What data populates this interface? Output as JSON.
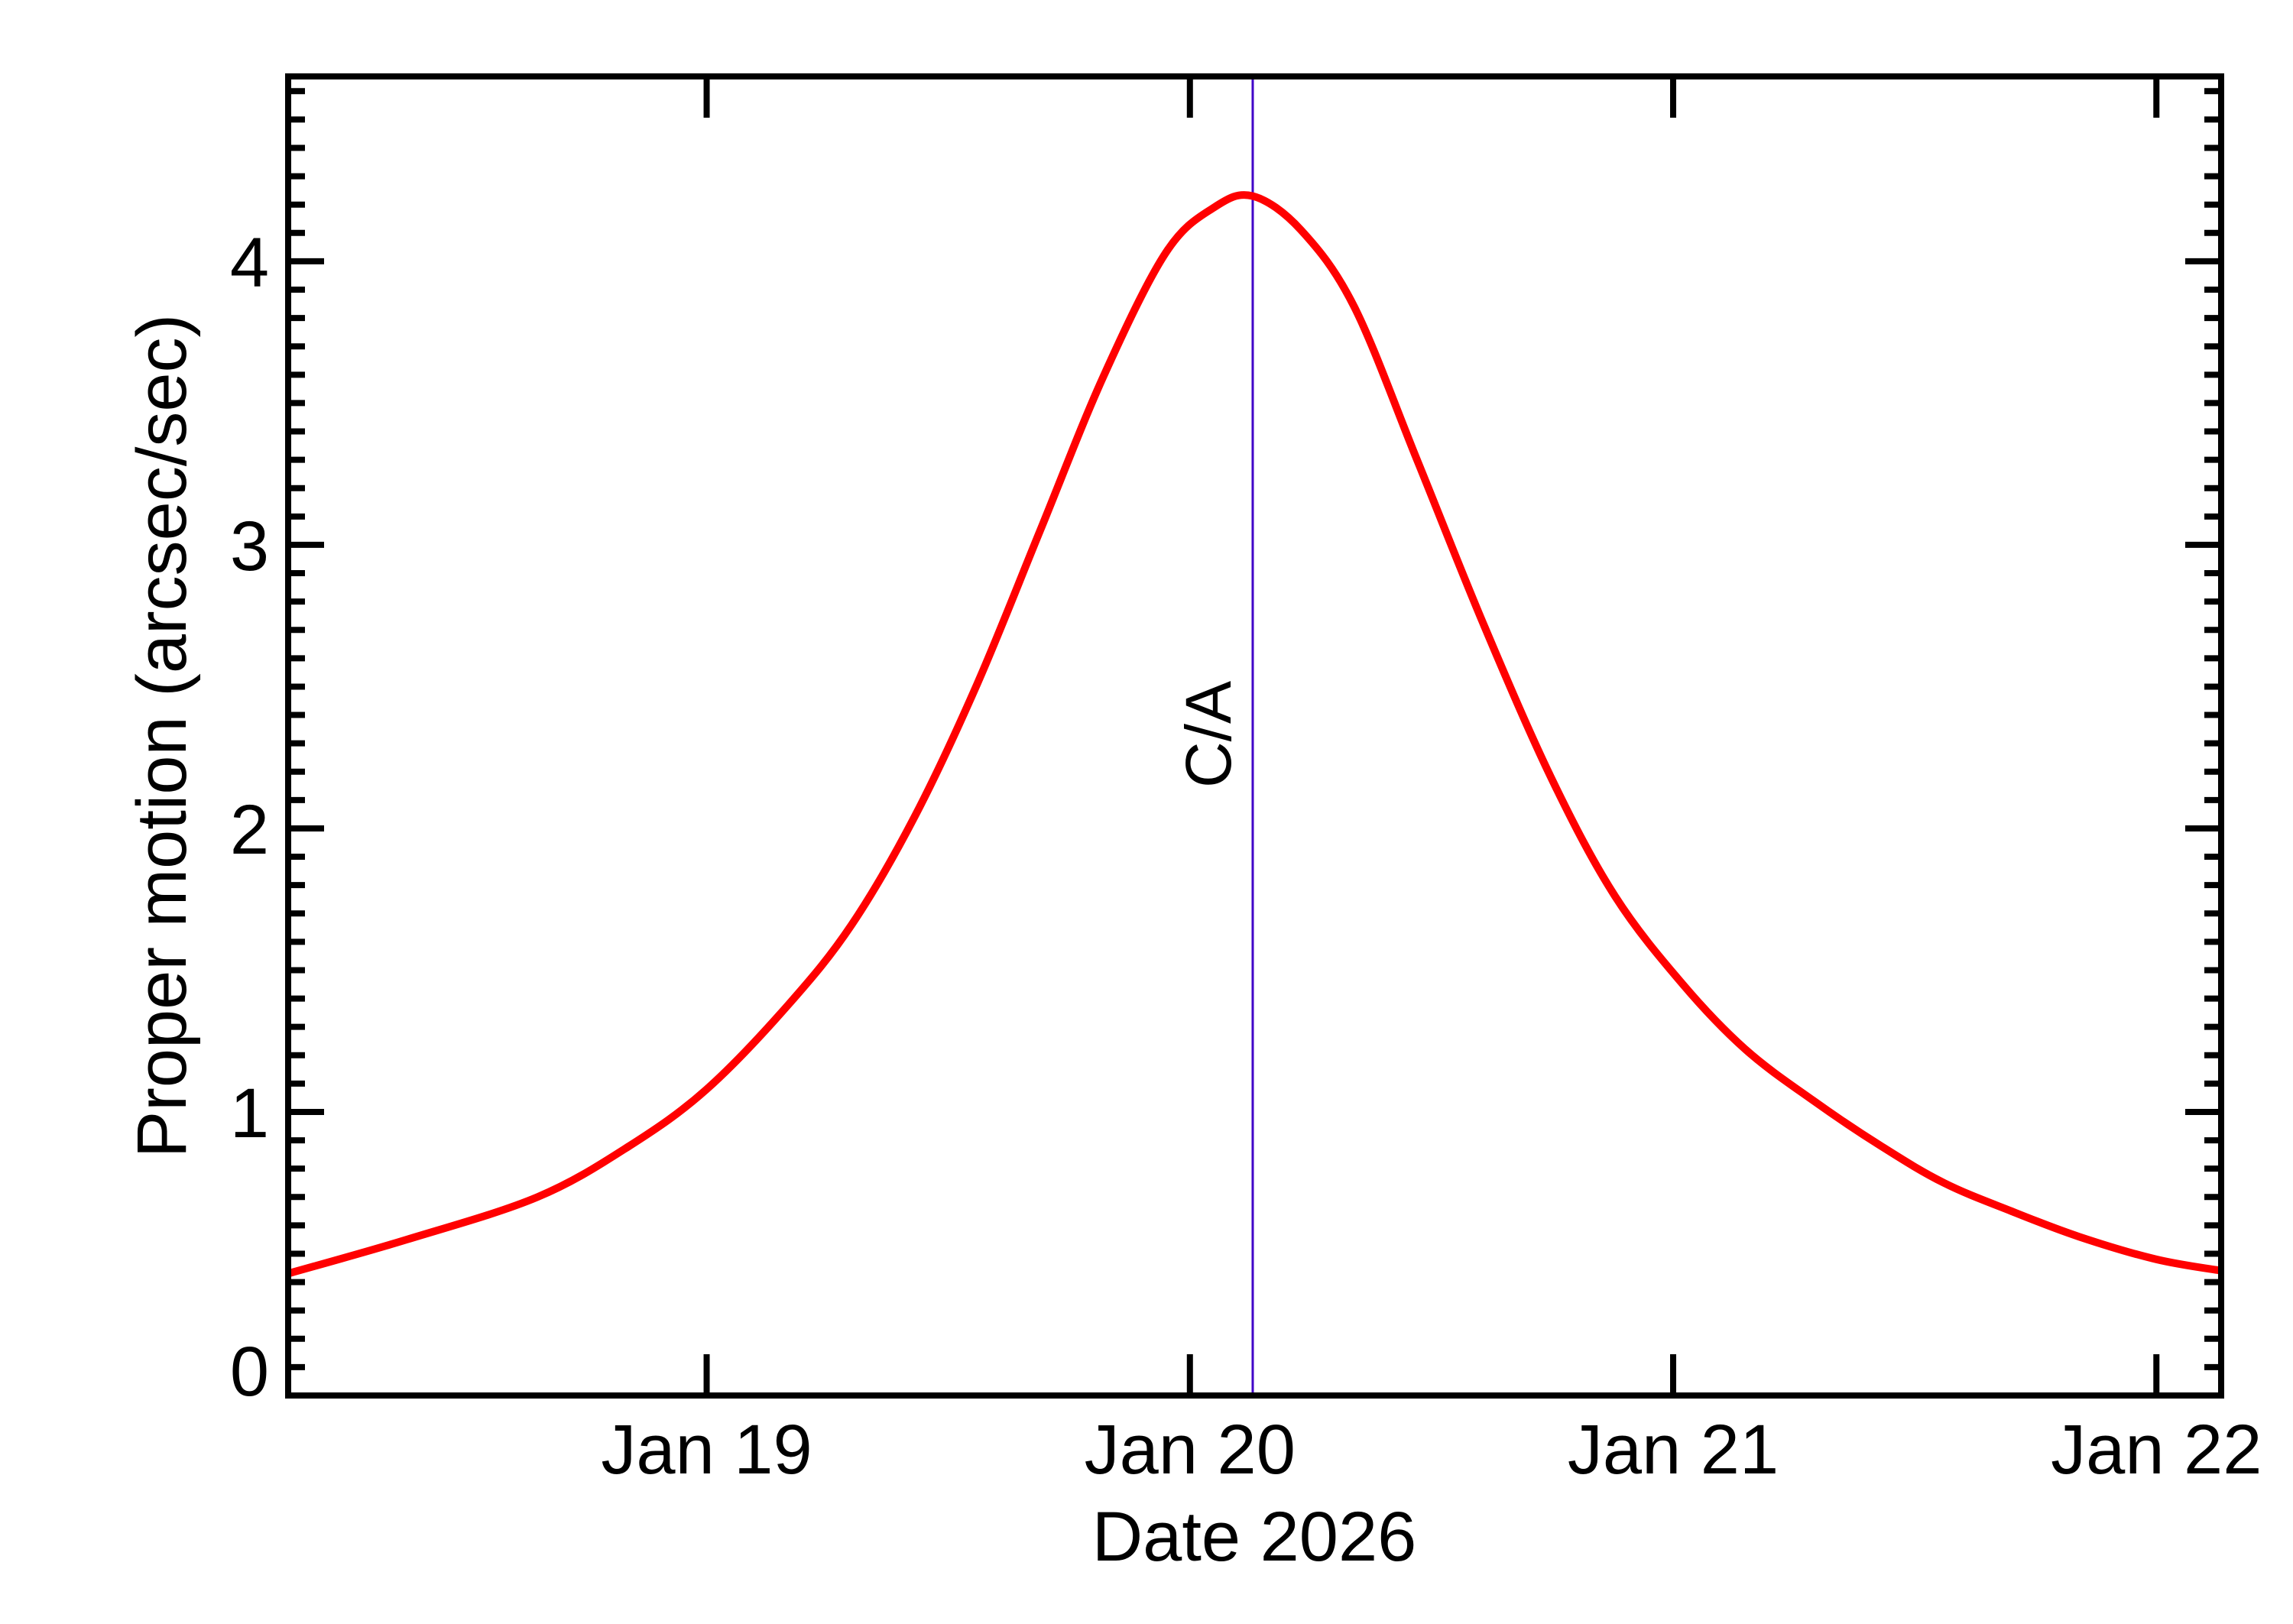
{
  "chart_data": {
    "type": "line",
    "title": "",
    "xlabel": "Date 2026",
    "ylabel": "Proper motion (arcsec/sec)",
    "x_unit": "day of January 2026 (fractional)",
    "xlim": [
      18.134,
      22.134
    ],
    "ylim": [
      0,
      4.652
    ],
    "x_ticks": [
      {
        "value": 19,
        "label": "Jan 19"
      },
      {
        "value": 20,
        "label": "Jan 20"
      },
      {
        "value": 21,
        "label": "Jan 21"
      },
      {
        "value": 22,
        "label": "Jan 22"
      }
    ],
    "y_ticks": [
      {
        "value": 0,
        "label": "0"
      },
      {
        "value": 1,
        "label": "1"
      },
      {
        "value": 2,
        "label": "2"
      },
      {
        "value": 3,
        "label": "3"
      },
      {
        "value": 4,
        "label": "4"
      }
    ],
    "y_minor_step": 0.1,
    "grid": false,
    "legend": null,
    "series": [
      {
        "name": "Proper motion",
        "color": "#ff0000",
        "x": [
          18.134,
          18.38,
          18.65,
          18.84,
          19.0,
          19.17,
          19.3,
          19.43,
          19.56,
          19.69,
          19.82,
          19.95,
          20.05,
          20.13,
          20.23,
          20.34,
          20.47,
          20.61,
          20.75,
          20.88,
          21.02,
          21.15,
          21.29,
          21.43,
          21.56,
          21.7,
          21.84,
          22.0,
          22.134
        ],
        "y": [
          0.43,
          0.55,
          0.7,
          0.88,
          1.08,
          1.38,
          1.66,
          2.04,
          2.51,
          3.05,
          3.59,
          4.03,
          4.19,
          4.23,
          4.11,
          3.84,
          3.3,
          2.71,
          2.17,
          1.76,
          1.45,
          1.22,
          1.04,
          0.88,
          0.75,
          0.65,
          0.56,
          0.48,
          0.44
        ]
      }
    ],
    "annotations": [
      {
        "type": "vline",
        "x": 20.13,
        "label": "C/A",
        "color": "#4000c8"
      }
    ],
    "peak": {
      "x": 20.13,
      "y": 4.23
    }
  }
}
